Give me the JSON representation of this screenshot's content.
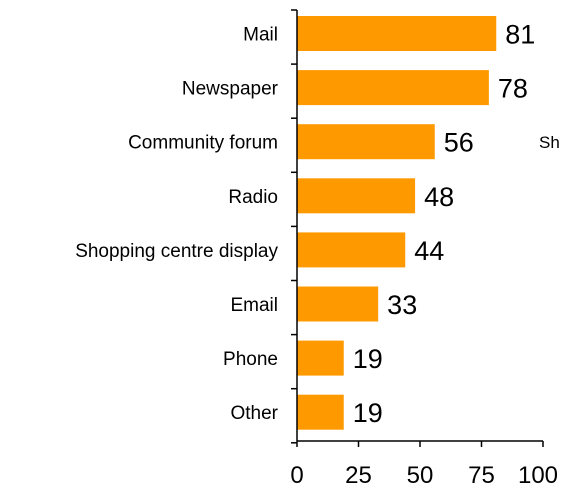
{
  "chart_data": {
    "type": "bar",
    "orientation": "horizontal",
    "categories": [
      "Mail",
      "Newspaper",
      "Community forum",
      "Radio",
      "Shopping centre display",
      "Email",
      "Phone",
      "Other"
    ],
    "values": [
      81,
      78,
      56,
      48,
      44,
      33,
      19,
      19
    ],
    "xlim": [
      0,
      100
    ],
    "xticks": [
      0,
      25,
      50,
      75,
      100
    ],
    "grid": false,
    "legend": "none",
    "bar_color": "#FF9900",
    "axis_color": "#000000"
  },
  "stray_text": "Sh"
}
